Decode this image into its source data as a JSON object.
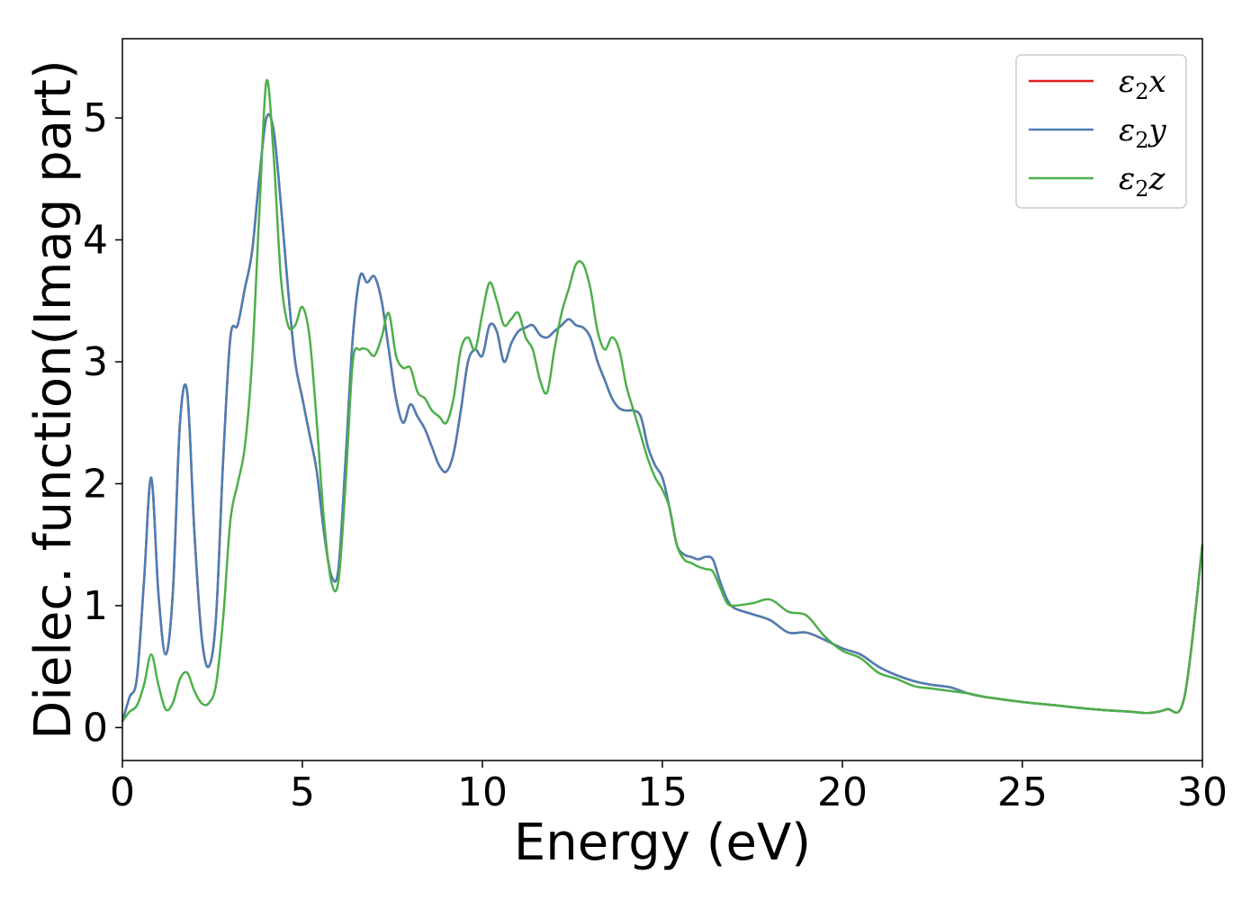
{
  "chart_data": {
    "type": "line",
    "title": "",
    "xlabel": "Energy (eV)",
    "ylabel": "Dielec. function(Imag part)",
    "xlim": [
      0,
      30
    ],
    "ylim": [
      -0.27,
      5.65
    ],
    "xticks": [
      0,
      5,
      10,
      15,
      20,
      25,
      30
    ],
    "yticks": [
      0,
      1,
      2,
      3,
      4,
      5
    ],
    "grid": false,
    "legend_position": "top-right",
    "series": [
      {
        "name": "ε₂x",
        "legend_main": "ε",
        "legend_sub": "2",
        "legend_suffix": "x",
        "color": "#e41a1c",
        "x": [
          0,
          0.2,
          0.4,
          0.6,
          0.8,
          1.0,
          1.2,
          1.4,
          1.6,
          1.8,
          2.0,
          2.2,
          2.4,
          2.6,
          2.8,
          3.0,
          3.2,
          3.4,
          3.6,
          3.8,
          4.0,
          4.2,
          4.4,
          4.6,
          4.8,
          5.0,
          5.2,
          5.4,
          5.6,
          5.8,
          6.0,
          6.2,
          6.4,
          6.6,
          6.8,
          7.0,
          7.2,
          7.4,
          7.6,
          7.8,
          8.0,
          8.2,
          8.4,
          8.6,
          8.8,
          9.0,
          9.2,
          9.4,
          9.6,
          9.8,
          10.0,
          10.2,
          10.4,
          10.6,
          10.8,
          11.0,
          11.2,
          11.4,
          11.6,
          11.8,
          12.0,
          12.2,
          12.4,
          12.6,
          12.8,
          13.0,
          13.2,
          13.4,
          13.6,
          13.8,
          14.0,
          14.2,
          14.4,
          14.6,
          14.8,
          15.0,
          15.2,
          15.4,
          15.6,
          15.8,
          16.0,
          16.2,
          16.4,
          16.6,
          16.8,
          17.0,
          17.5,
          18.0,
          18.5,
          19.0,
          19.5,
          20.0,
          20.5,
          21.0,
          21.5,
          22.0,
          22.5,
          23.0,
          23.5,
          24.0,
          25.0,
          26.0,
          27.0,
          28.0,
          28.5,
          29.0,
          29.5,
          30.0
        ],
        "y": [
          0.05,
          0.25,
          0.4,
          1.2,
          2.05,
          1.1,
          0.6,
          1.1,
          2.5,
          2.75,
          1.6,
          0.75,
          0.5,
          0.9,
          2.2,
          3.2,
          3.3,
          3.6,
          3.9,
          4.5,
          5.0,
          4.9,
          4.3,
          3.6,
          3.0,
          2.7,
          2.4,
          2.1,
          1.6,
          1.25,
          1.3,
          2.2,
          3.2,
          3.7,
          3.65,
          3.7,
          3.5,
          3.1,
          2.7,
          2.5,
          2.65,
          2.55,
          2.45,
          2.3,
          2.15,
          2.1,
          2.25,
          2.6,
          3.0,
          3.1,
          3.05,
          3.3,
          3.25,
          3.0,
          3.15,
          3.25,
          3.28,
          3.3,
          3.22,
          3.2,
          3.25,
          3.3,
          3.35,
          3.3,
          3.28,
          3.2,
          3.0,
          2.85,
          2.7,
          2.62,
          2.6,
          2.6,
          2.55,
          2.3,
          2.15,
          2.05,
          1.8,
          1.5,
          1.42,
          1.4,
          1.38,
          1.4,
          1.38,
          1.2,
          1.05,
          0.98,
          0.93,
          0.88,
          0.78,
          0.78,
          0.72,
          0.65,
          0.6,
          0.5,
          0.43,
          0.38,
          0.35,
          0.33,
          0.28,
          0.25,
          0.21,
          0.18,
          0.15,
          0.13,
          0.12,
          0.15,
          0.25,
          1.5
        ]
      },
      {
        "name": "ε₂y",
        "legend_main": "ε",
        "legend_sub": "2",
        "legend_suffix": "y",
        "color": "#4a7fb5",
        "x": [
          0,
          0.2,
          0.4,
          0.6,
          0.8,
          1.0,
          1.2,
          1.4,
          1.6,
          1.8,
          2.0,
          2.2,
          2.4,
          2.6,
          2.8,
          3.0,
          3.2,
          3.4,
          3.6,
          3.8,
          4.0,
          4.2,
          4.4,
          4.6,
          4.8,
          5.0,
          5.2,
          5.4,
          5.6,
          5.8,
          6.0,
          6.2,
          6.4,
          6.6,
          6.8,
          7.0,
          7.2,
          7.4,
          7.6,
          7.8,
          8.0,
          8.2,
          8.4,
          8.6,
          8.8,
          9.0,
          9.2,
          9.4,
          9.6,
          9.8,
          10.0,
          10.2,
          10.4,
          10.6,
          10.8,
          11.0,
          11.2,
          11.4,
          11.6,
          11.8,
          12.0,
          12.2,
          12.4,
          12.6,
          12.8,
          13.0,
          13.2,
          13.4,
          13.6,
          13.8,
          14.0,
          14.2,
          14.4,
          14.6,
          14.8,
          15.0,
          15.2,
          15.4,
          15.6,
          15.8,
          16.0,
          16.2,
          16.4,
          16.6,
          16.8,
          17.0,
          17.5,
          18.0,
          18.5,
          19.0,
          19.5,
          20.0,
          20.5,
          21.0,
          21.5,
          22.0,
          22.5,
          23.0,
          23.5,
          24.0,
          25.0,
          26.0,
          27.0,
          28.0,
          28.5,
          29.0,
          29.5,
          30.0
        ],
        "y": [
          0.05,
          0.25,
          0.4,
          1.2,
          2.05,
          1.1,
          0.6,
          1.1,
          2.5,
          2.75,
          1.6,
          0.75,
          0.5,
          0.9,
          2.2,
          3.2,
          3.3,
          3.6,
          3.9,
          4.5,
          5.0,
          4.9,
          4.3,
          3.6,
          3.0,
          2.7,
          2.4,
          2.1,
          1.6,
          1.25,
          1.3,
          2.2,
          3.2,
          3.7,
          3.65,
          3.7,
          3.5,
          3.1,
          2.7,
          2.5,
          2.65,
          2.55,
          2.45,
          2.3,
          2.15,
          2.1,
          2.25,
          2.6,
          3.0,
          3.1,
          3.05,
          3.3,
          3.25,
          3.0,
          3.15,
          3.25,
          3.28,
          3.3,
          3.22,
          3.2,
          3.25,
          3.3,
          3.35,
          3.3,
          3.28,
          3.2,
          3.0,
          2.85,
          2.7,
          2.62,
          2.6,
          2.6,
          2.55,
          2.3,
          2.15,
          2.05,
          1.8,
          1.5,
          1.42,
          1.4,
          1.38,
          1.4,
          1.38,
          1.2,
          1.05,
          0.98,
          0.93,
          0.88,
          0.78,
          0.78,
          0.72,
          0.65,
          0.6,
          0.5,
          0.43,
          0.38,
          0.35,
          0.33,
          0.28,
          0.25,
          0.21,
          0.18,
          0.15,
          0.13,
          0.12,
          0.15,
          0.25,
          1.5
        ]
      },
      {
        "name": "ε₂z",
        "legend_main": "ε",
        "legend_sub": "2",
        "legend_suffix": "z",
        "color": "#4daf4a",
        "x": [
          0,
          0.2,
          0.4,
          0.6,
          0.8,
          1.0,
          1.2,
          1.4,
          1.6,
          1.8,
          2.0,
          2.2,
          2.4,
          2.6,
          2.8,
          3.0,
          3.2,
          3.4,
          3.6,
          3.8,
          4.0,
          4.2,
          4.4,
          4.6,
          4.8,
          5.0,
          5.2,
          5.4,
          5.6,
          5.8,
          6.0,
          6.2,
          6.4,
          6.6,
          6.8,
          7.0,
          7.2,
          7.4,
          7.6,
          7.8,
          8.0,
          8.2,
          8.4,
          8.6,
          8.8,
          9.0,
          9.2,
          9.4,
          9.6,
          9.8,
          10.0,
          10.2,
          10.4,
          10.6,
          10.8,
          11.0,
          11.2,
          11.4,
          11.6,
          11.8,
          12.0,
          12.2,
          12.4,
          12.6,
          12.8,
          13.0,
          13.2,
          13.4,
          13.6,
          13.8,
          14.0,
          14.2,
          14.4,
          14.6,
          14.8,
          15.0,
          15.2,
          15.4,
          15.6,
          15.8,
          16.0,
          16.2,
          16.4,
          16.6,
          16.8,
          17.0,
          17.5,
          18.0,
          18.5,
          19.0,
          19.5,
          20.0,
          20.5,
          21.0,
          21.5,
          22.0,
          22.5,
          23.0,
          23.5,
          24.0,
          25.0,
          26.0,
          27.0,
          28.0,
          28.5,
          29.0,
          29.5,
          30.0
        ],
        "y": [
          0.05,
          0.13,
          0.18,
          0.35,
          0.6,
          0.35,
          0.15,
          0.2,
          0.4,
          0.45,
          0.3,
          0.2,
          0.2,
          0.35,
          0.9,
          1.7,
          2.0,
          2.3,
          3.0,
          4.2,
          5.3,
          4.7,
          3.7,
          3.3,
          3.3,
          3.45,
          3.2,
          2.5,
          1.7,
          1.2,
          1.2,
          2.0,
          3.0,
          3.1,
          3.1,
          3.05,
          3.2,
          3.4,
          3.05,
          2.95,
          2.95,
          2.75,
          2.7,
          2.6,
          2.55,
          2.5,
          2.7,
          3.1,
          3.2,
          3.1,
          3.4,
          3.65,
          3.5,
          3.3,
          3.35,
          3.4,
          3.2,
          3.1,
          2.85,
          2.75,
          3.1,
          3.4,
          3.6,
          3.8,
          3.8,
          3.6,
          3.25,
          3.1,
          3.2,
          3.1,
          2.8,
          2.6,
          2.4,
          2.2,
          2.05,
          1.95,
          1.8,
          1.5,
          1.38,
          1.35,
          1.32,
          1.3,
          1.28,
          1.15,
          1.02,
          1.0,
          1.02,
          1.05,
          0.95,
          0.92,
          0.75,
          0.63,
          0.57,
          0.45,
          0.4,
          0.34,
          0.32,
          0.3,
          0.28,
          0.25,
          0.21,
          0.18,
          0.15,
          0.13,
          0.12,
          0.15,
          0.25,
          1.5
        ]
      }
    ]
  }
}
